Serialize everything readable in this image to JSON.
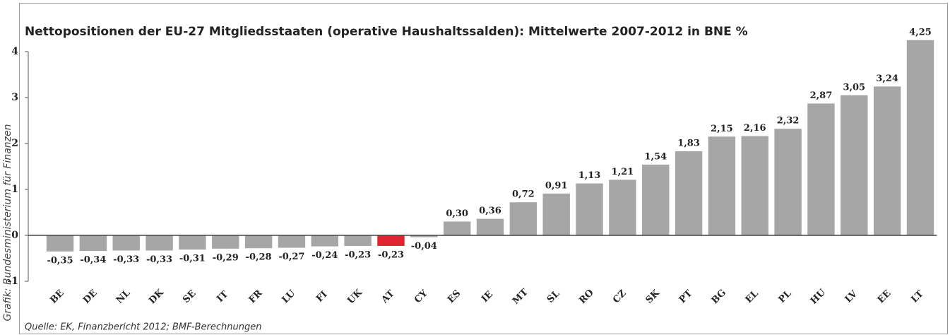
{
  "chart_data": {
    "type": "bar",
    "title": "Nettopositionen der EU-27 Mitgliedsstaaten (operative Haushaltssalden): Mittelwerte 2007-2012 in BNE %",
    "source": "Quelle: EK, Finanzbericht 2012; BMF-Berechnungen",
    "credit": "Grafik: Bundesministerium für Finanzen",
    "categories": [
      "BE",
      "DE",
      "NL",
      "DK",
      "SE",
      "IT",
      "FR",
      "LU",
      "FI",
      "UK",
      "AT",
      "CY",
      "ES",
      "IE",
      "MT",
      "SL",
      "RO",
      "CZ",
      "SK",
      "PT",
      "BG",
      "EL",
      "PL",
      "HU",
      "LV",
      "EE",
      "LT"
    ],
    "values": [
      -0.35,
      -0.34,
      -0.33,
      -0.33,
      -0.31,
      -0.29,
      -0.28,
      -0.27,
      -0.24,
      -0.23,
      -0.23,
      -0.04,
      0.3,
      0.36,
      0.72,
      0.91,
      1.13,
      1.21,
      1.54,
      1.83,
      2.15,
      2.16,
      2.32,
      2.87,
      3.05,
      3.24,
      4.25
    ],
    "value_labels": [
      "-0,35",
      "-0,34",
      "-0,33",
      "-0,33",
      "-0,31",
      "-0,29",
      "-0,28",
      "-0,27",
      "-0,24",
      "-0,23",
      "-0,23",
      "-0,04",
      "0,30",
      "0,36",
      "0,72",
      "0,91",
      "1,13",
      "1,21",
      "1,54",
      "1,83",
      "2,15",
      "2,16",
      "2,32",
      "2,87",
      "3,05",
      "3,24",
      "4,25"
    ],
    "colors": [
      "#a6a6a6",
      "#a6a6a6",
      "#a6a6a6",
      "#a6a6a6",
      "#a6a6a6",
      "#a6a6a6",
      "#a6a6a6",
      "#a6a6a6",
      "#a6a6a6",
      "#a6a6a6",
      "#e0242f",
      "#a6a6a6",
      "#a6a6a6",
      "#a6a6a6",
      "#a6a6a6",
      "#a6a6a6",
      "#a6a6a6",
      "#a6a6a6",
      "#a6a6a6",
      "#a6a6a6",
      "#a6a6a6",
      "#a6a6a6",
      "#a6a6a6",
      "#a6a6a6",
      "#a6a6a6",
      "#a6a6a6",
      "#a6a6a6"
    ],
    "ylim": [
      -1,
      4.3
    ],
    "yticks": [
      -1,
      0,
      1,
      2,
      3,
      4
    ],
    "grid": false
  }
}
